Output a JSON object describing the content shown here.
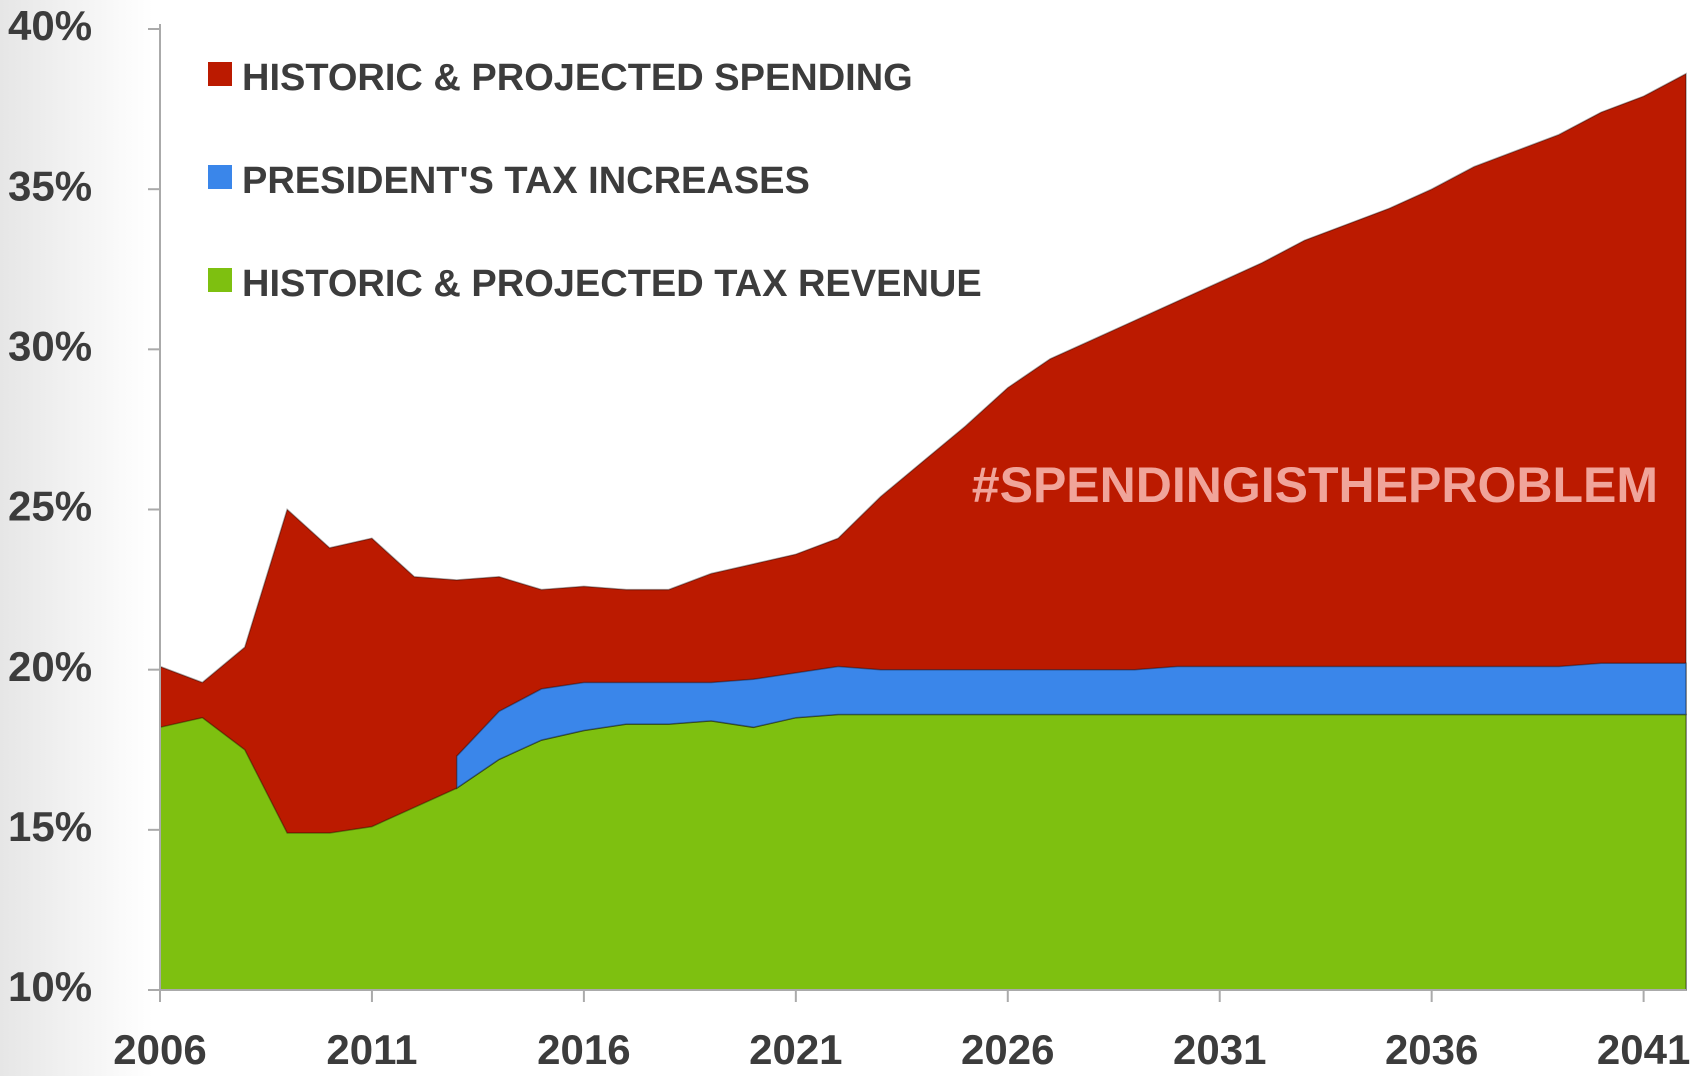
{
  "chart_data": {
    "type": "area",
    "annotation": "#SPENDINGISTHEPROBLEM",
    "x": [
      2006,
      2007,
      2008,
      2009,
      2010,
      2011,
      2012,
      2013,
      2014,
      2015,
      2016,
      2017,
      2018,
      2019,
      2020,
      2021,
      2022,
      2023,
      2024,
      2025,
      2026,
      2027,
      2028,
      2029,
      2030,
      2031,
      2032,
      2033,
      2034,
      2035,
      2036,
      2037,
      2038,
      2039,
      2040,
      2041,
      2042
    ],
    "series": [
      {
        "name": "HISTORIC & PROJECTED SPENDING",
        "color": "#bb1a00",
        "values": [
          20.1,
          19.6,
          20.7,
          25.0,
          23.8,
          24.1,
          22.9,
          22.8,
          22.9,
          22.5,
          22.6,
          22.5,
          22.5,
          23.0,
          23.3,
          23.6,
          24.1,
          25.4,
          26.5,
          27.6,
          28.8,
          29.7,
          30.3,
          30.9,
          31.5,
          32.1,
          32.7,
          33.4,
          33.9,
          34.4,
          35.0,
          35.7,
          36.2,
          36.7,
          37.4,
          37.9,
          38.6
        ]
      },
      {
        "name": "PRESIDENT'S TAX INCREASES",
        "color": "#3a86ea",
        "stacked_on": "HISTORIC & PROJECTED TAX REVENUE",
        "values": [
          null,
          null,
          null,
          null,
          null,
          null,
          null,
          1.0,
          1.5,
          1.6,
          1.5,
          1.3,
          1.3,
          1.2,
          1.5,
          1.4,
          1.5,
          1.4,
          1.4,
          1.4,
          1.4,
          1.4,
          1.4,
          1.4,
          1.5,
          1.5,
          1.5,
          1.5,
          1.5,
          1.5,
          1.5,
          1.5,
          1.5,
          1.5,
          1.6,
          1.6,
          1.6
        ]
      },
      {
        "name": "HISTORIC & PROJECTED TAX REVENUE",
        "color": "#7ec010",
        "values": [
          18.2,
          18.5,
          17.5,
          14.9,
          14.9,
          15.1,
          15.7,
          16.3,
          17.2,
          17.8,
          18.1,
          18.3,
          18.3,
          18.4,
          18.2,
          18.5,
          18.6,
          18.6,
          18.6,
          18.6,
          18.6,
          18.6,
          18.6,
          18.6,
          18.6,
          18.6,
          18.6,
          18.6,
          18.6,
          18.6,
          18.6,
          18.6,
          18.6,
          18.6,
          18.6,
          18.6,
          18.6
        ]
      }
    ],
    "xlim": [
      2006,
      2042
    ],
    "xticks": [
      2006,
      2011,
      2016,
      2021,
      2026,
      2031,
      2036,
      2041
    ],
    "ylim": [
      10,
      40
    ],
    "yticks": [
      {
        "value": 10,
        "label": "10%"
      },
      {
        "value": 15,
        "label": "15%"
      },
      {
        "value": 20,
        "label": "20%"
      },
      {
        "value": 25,
        "label": "25%"
      },
      {
        "value": 30,
        "label": "30%"
      },
      {
        "value": 35,
        "label": "35%"
      },
      {
        "value": 40,
        "label": "40%"
      }
    ]
  }
}
